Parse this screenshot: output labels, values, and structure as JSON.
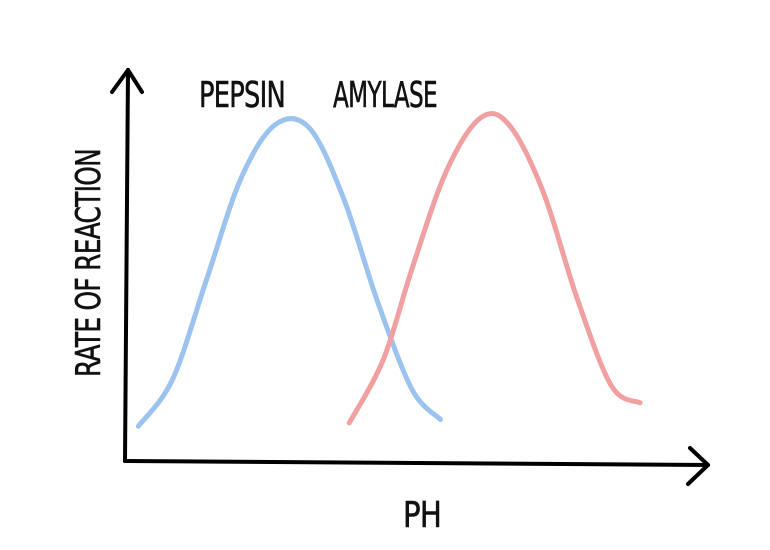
{
  "chart_data": {
    "type": "line",
    "title": "",
    "xlabel": "PH",
    "ylabel": "RATE OF REACTION",
    "xlim": [
      0,
      10
    ],
    "ylim": [
      0,
      10
    ],
    "grid": false,
    "legend": "none",
    "series": [
      {
        "name": "PEPSIN",
        "color": "#9cc3ee",
        "x": [
          0.2,
          0.8,
          1.4,
          2.0,
          2.6,
          3.2,
          3.8,
          4.4,
          5.0,
          5.5
        ],
        "y": [
          0.8,
          2.2,
          5.2,
          8.2,
          9.8,
          9.7,
          7.6,
          4.5,
          1.9,
          1.0
        ]
      },
      {
        "name": "AMYLASE",
        "color": "#f0a0a0",
        "x": [
          3.9,
          4.5,
          5.0,
          5.6,
          6.2,
          6.7,
          7.3,
          7.9,
          8.5,
          9.0
        ],
        "y": [
          0.9,
          2.8,
          5.5,
          8.4,
          10.0,
          9.8,
          7.8,
          4.6,
          2.0,
          1.5
        ]
      }
    ]
  }
}
